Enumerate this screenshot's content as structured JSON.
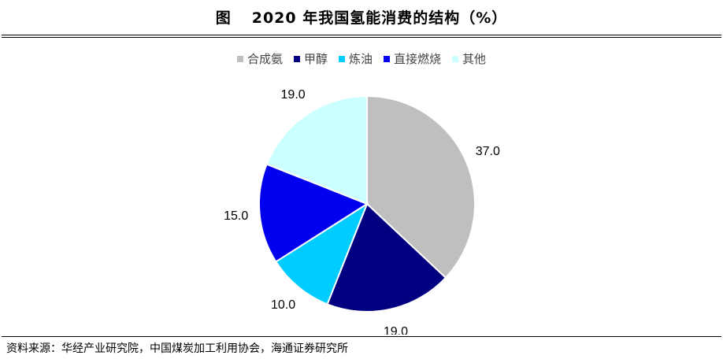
{
  "header": {
    "figure_label": "图",
    "title": "2020 年我国氢能消费的结构（%）"
  },
  "chart_data": {
    "type": "pie",
    "slices": [
      {
        "label": "合成氨",
        "value": 37.0,
        "value_label": "37.0",
        "color": "#bfbfbf"
      },
      {
        "label": "甲醇",
        "value": 19.0,
        "value_label": "19.0",
        "color": "#000080"
      },
      {
        "label": "炼油",
        "value": 10.0,
        "value_label": "10.0",
        "color": "#00ccff"
      },
      {
        "label": "直接燃烧",
        "value": 15.0,
        "value_label": "15.0",
        "color": "#0000ee"
      },
      {
        "label": "其他",
        "value": 19.0,
        "value_label": "19.0",
        "color": "#ccffff"
      }
    ],
    "start_angle": "12 o'clock",
    "direction": "clockwise",
    "legend_position": "top"
  },
  "footer": {
    "source": "资料来源：华经产业研究院，中国煤炭加工利用协会，海通证券研究所"
  }
}
